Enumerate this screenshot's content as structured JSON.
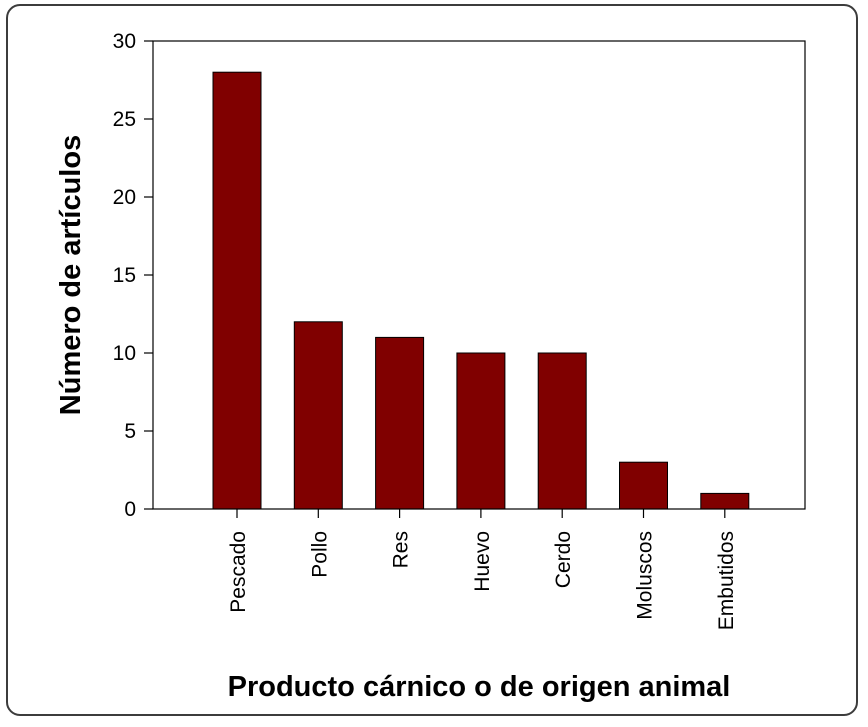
{
  "chart_data": {
    "type": "bar",
    "categories": [
      "Pescado",
      "Pollo",
      "Res",
      "Huevo",
      "Cerdo",
      "Moluscos",
      "Embutidos"
    ],
    "values": [
      28,
      12,
      11,
      10,
      10,
      3,
      1
    ],
    "xlabel": "Producto cárnico o de origen animal",
    "ylabel": "Número de artículos",
    "ylim": [
      0,
      30
    ],
    "yticks": [
      0,
      5,
      10,
      15,
      20,
      25,
      30
    ],
    "bar_color": "#800000",
    "grid": false,
    "legend": "none"
  }
}
